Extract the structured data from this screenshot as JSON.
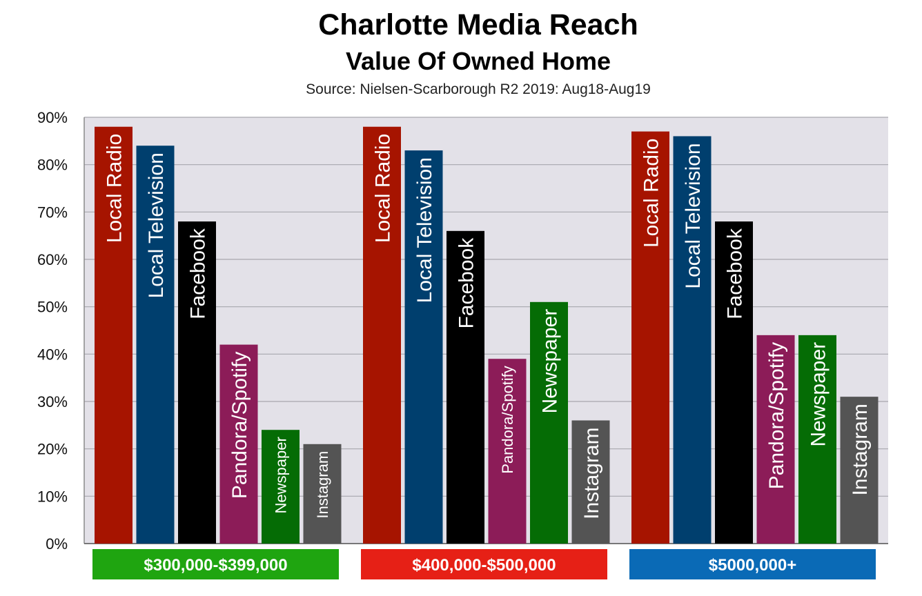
{
  "title": "Charlotte Media Reach",
  "subtitle": "Value Of Owned Home",
  "source": "Source: Nielsen-Scarborough R2 2019: Aug18-Aug19",
  "chart_data": {
    "type": "bar",
    "title": "Charlotte Media Reach",
    "subtitle": "Value Of Owned Home",
    "source": "Source: Nielsen-Scarborough R2 2019: Aug18-Aug19",
    "ylim": [
      0,
      90
    ],
    "yticks": [
      0,
      10,
      20,
      30,
      40,
      50,
      60,
      70,
      80,
      90
    ],
    "ytick_labels": [
      "0%",
      "10%",
      "20%",
      "30%",
      "40%",
      "50%",
      "60%",
      "70%",
      "80%",
      "90%"
    ],
    "grid": true,
    "plot_background": "#e3e1e8",
    "categories": [
      "$300,000-$399,000",
      "$400,000-$500,000",
      "$5000,000+"
    ],
    "category_colors": [
      "#1fa510",
      "#e62016",
      "#0a6ab6"
    ],
    "series": [
      {
        "name": "Local Radio",
        "color": "#a61400",
        "values": [
          88,
          88,
          87
        ]
      },
      {
        "name": "Local Television",
        "color": "#003f6e",
        "values": [
          84,
          83,
          86
        ]
      },
      {
        "name": "Facebook",
        "color": "#000000",
        "values": [
          68,
          66,
          68
        ]
      },
      {
        "name": "Pandora/Spotify",
        "color": "#8c1c58",
        "values": [
          42,
          39,
          44
        ]
      },
      {
        "name": "Newspaper",
        "color": "#056c05",
        "values": [
          24,
          51,
          44
        ]
      },
      {
        "name": "Instagram",
        "color": "#545454",
        "values": [
          21,
          26,
          31
        ]
      }
    ]
  }
}
